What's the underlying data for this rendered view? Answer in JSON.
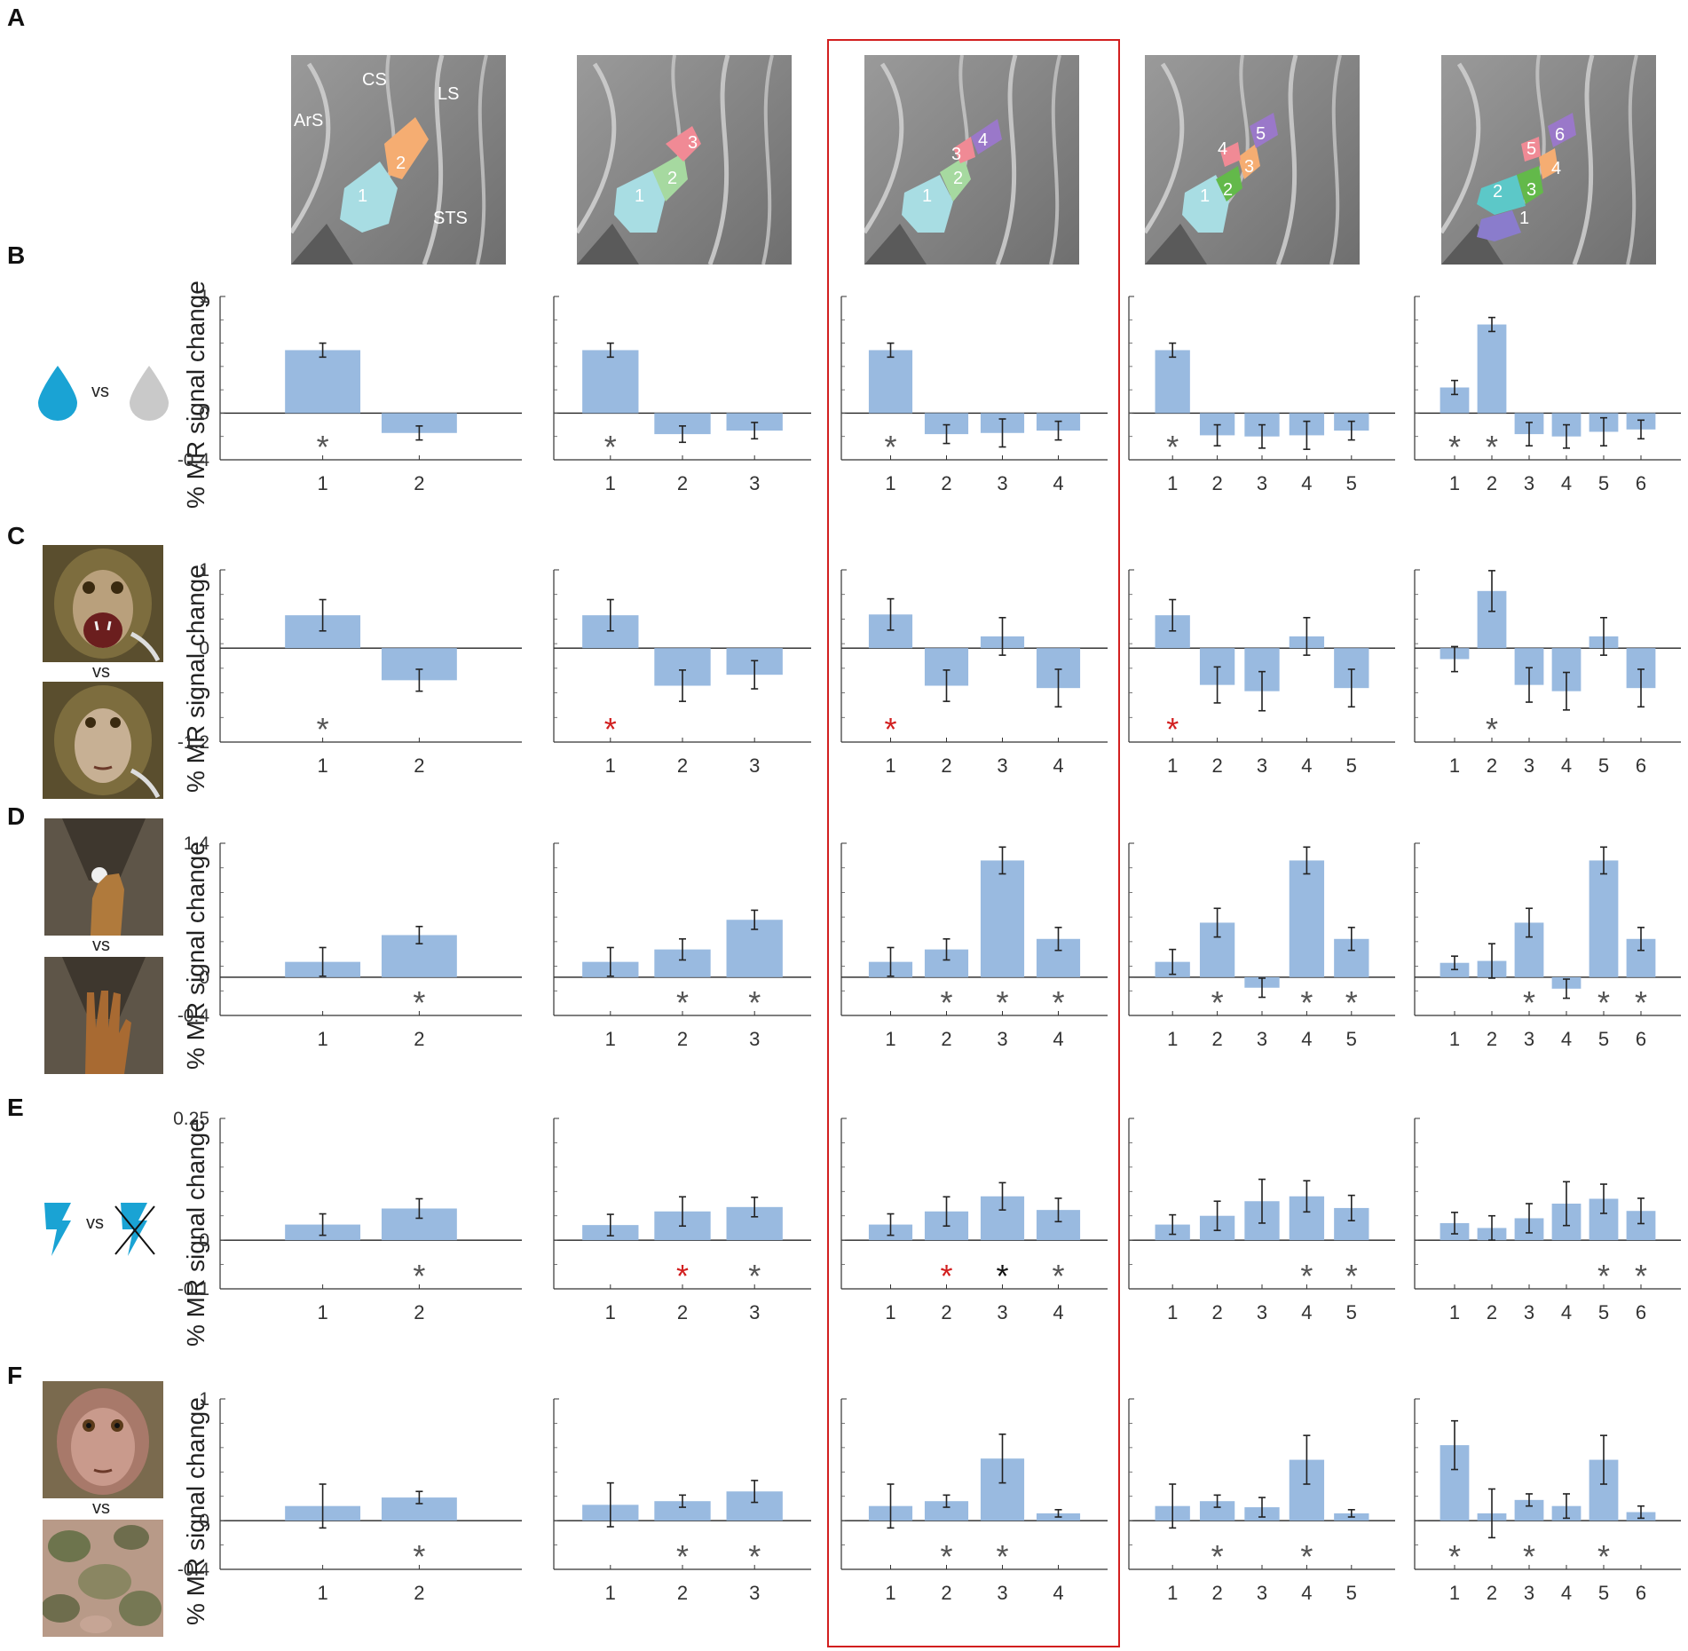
{
  "figure": {
    "panel_labels": [
      "A",
      "B",
      "C",
      "D",
      "E",
      "F"
    ],
    "ylabel": "% MR signal change",
    "vs_label": "vs",
    "highlight_color": "#d21f1f",
    "bar_color": "#99bae0",
    "star_colors": {
      "gray": "#555555",
      "red": "#d21f1f",
      "black": "#111111"
    }
  },
  "brain_maps": [
    {
      "labels": [
        "1",
        "2"
      ],
      "sulci": [
        "CS",
        "LS",
        "ArS",
        "STS"
      ]
    },
    {
      "labels": [
        "1",
        "2",
        "3"
      ],
      "sulci": []
    },
    {
      "labels": [
        "1",
        "2",
        "3",
        "4"
      ],
      "sulci": []
    },
    {
      "labels": [
        "1",
        "2",
        "3",
        "4",
        "5"
      ],
      "sulci": []
    },
    {
      "labels": [
        "1",
        "2",
        "3",
        "4",
        "5",
        "6"
      ],
      "sulci": []
    }
  ],
  "chart_data": [
    {
      "row": "B",
      "type": "bar",
      "ylim": [
        -0.4,
        1
      ],
      "yticks": [
        "1",
        "0",
        "-0.4"
      ],
      "charts": [
        {
          "categories": [
            "1",
            "2"
          ],
          "values": [
            0.54,
            -0.17
          ],
          "errors": [
            0.06,
            0.06
          ],
          "stars": [
            "gray",
            ""
          ]
        },
        {
          "categories": [
            "1",
            "2",
            "3"
          ],
          "values": [
            0.54,
            -0.18,
            -0.15
          ],
          "errors": [
            0.06,
            0.07,
            0.07
          ],
          "stars": [
            "gray",
            "",
            ""
          ]
        },
        {
          "categories": [
            "1",
            "2",
            "3",
            "4"
          ],
          "values": [
            0.54,
            -0.18,
            -0.17,
            -0.15
          ],
          "errors": [
            0.06,
            0.08,
            0.12,
            0.08
          ],
          "stars": [
            "gray",
            "",
            "",
            ""
          ]
        },
        {
          "categories": [
            "1",
            "2",
            "3",
            "4",
            "5"
          ],
          "values": [
            0.54,
            -0.19,
            -0.2,
            -0.19,
            -0.15
          ],
          "errors": [
            0.06,
            0.09,
            0.1,
            0.12,
            0.08
          ],
          "stars": [
            "gray",
            "",
            "",
            "",
            ""
          ]
        },
        {
          "categories": [
            "1",
            "2",
            "3",
            "4",
            "5",
            "6"
          ],
          "values": [
            0.22,
            0.76,
            -0.18,
            -0.2,
            -0.16,
            -0.14
          ],
          "errors": [
            0.06,
            0.06,
            0.1,
            0.1,
            0.12,
            0.08
          ],
          "stars": [
            "gray",
            "gray",
            "",
            "",
            "",
            ""
          ]
        }
      ]
    },
    {
      "row": "C",
      "type": "bar",
      "ylim": [
        -1.2,
        1
      ],
      "yticks": [
        "1",
        "0",
        "-1.2"
      ],
      "charts": [
        {
          "categories": [
            "1",
            "2"
          ],
          "values": [
            0.42,
            -0.41
          ],
          "errors": [
            0.2,
            0.14
          ],
          "stars": [
            "gray",
            ""
          ]
        },
        {
          "categories": [
            "1",
            "2",
            "3"
          ],
          "values": [
            0.42,
            -0.48,
            -0.34
          ],
          "errors": [
            0.2,
            0.2,
            0.18
          ],
          "stars": [
            "red",
            "",
            ""
          ]
        },
        {
          "categories": [
            "1",
            "2",
            "3",
            "4"
          ],
          "values": [
            0.43,
            -0.48,
            0.15,
            -0.51
          ],
          "errors": [
            0.2,
            0.2,
            0.24,
            0.24
          ],
          "stars": [
            "red",
            "",
            "",
            ""
          ]
        },
        {
          "categories": [
            "1",
            "2",
            "3",
            "4",
            "5"
          ],
          "values": [
            0.42,
            -0.47,
            -0.55,
            0.15,
            -0.51
          ],
          "errors": [
            0.2,
            0.23,
            0.25,
            0.24,
            0.24
          ],
          "stars": [
            "red",
            "",
            "",
            "",
            ""
          ]
        },
        {
          "categories": [
            "1",
            "2",
            "3",
            "4",
            "5",
            "6"
          ],
          "values": [
            -0.14,
            0.73,
            -0.47,
            -0.55,
            0.15,
            -0.51
          ],
          "errors": [
            0.16,
            0.26,
            0.22,
            0.24,
            0.24,
            0.24
          ],
          "stars": [
            "",
            "gray",
            "",
            "",
            "",
            ""
          ]
        }
      ]
    },
    {
      "row": "D",
      "type": "bar",
      "ylim": [
        -0.4,
        1.4
      ],
      "yticks": [
        "1.4",
        "0",
        "-0.4"
      ],
      "charts": [
        {
          "categories": [
            "1",
            "2"
          ],
          "values": [
            0.16,
            0.44
          ],
          "errors": [
            0.15,
            0.09
          ],
          "stars": [
            "",
            "gray"
          ]
        },
        {
          "categories": [
            "1",
            "2",
            "3"
          ],
          "values": [
            0.16,
            0.29,
            0.6
          ],
          "errors": [
            0.15,
            0.11,
            0.1
          ],
          "stars": [
            "",
            "gray",
            "gray"
          ]
        },
        {
          "categories": [
            "1",
            "2",
            "3",
            "4"
          ],
          "values": [
            0.16,
            0.29,
            1.22,
            0.4
          ],
          "errors": [
            0.15,
            0.11,
            0.14,
            0.12
          ],
          "stars": [
            "",
            "gray",
            "gray",
            "gray"
          ]
        },
        {
          "categories": [
            "1",
            "2",
            "3",
            "4",
            "5"
          ],
          "values": [
            0.16,
            0.57,
            -0.11,
            1.22,
            0.4
          ],
          "errors": [
            0.13,
            0.15,
            0.1,
            0.14,
            0.12
          ],
          "stars": [
            "",
            "gray",
            "",
            "gray",
            "gray"
          ]
        },
        {
          "categories": [
            "1",
            "2",
            "3",
            "4",
            "5",
            "6"
          ],
          "values": [
            0.15,
            0.17,
            0.57,
            -0.12,
            1.22,
            0.4
          ],
          "errors": [
            0.07,
            0.18,
            0.15,
            0.1,
            0.14,
            0.12
          ],
          "stars": [
            "",
            "",
            "gray",
            "",
            "gray",
            "gray"
          ]
        }
      ]
    },
    {
      "row": "E",
      "type": "bar",
      "ylim": [
        -0.1,
        0.25
      ],
      "yticks": [
        "0.25",
        "0",
        "-0.1"
      ],
      "charts": [
        {
          "categories": [
            "1",
            "2"
          ],
          "values": [
            0.032,
            0.065
          ],
          "errors": [
            0.022,
            0.02
          ],
          "stars": [
            "",
            "gray"
          ]
        },
        {
          "categories": [
            "1",
            "2",
            "3"
          ],
          "values": [
            0.031,
            0.059,
            0.068
          ],
          "errors": [
            0.022,
            0.03,
            0.02
          ],
          "stars": [
            "",
            "red",
            "gray"
          ]
        },
        {
          "categories": [
            "1",
            "2",
            "3",
            "4"
          ],
          "values": [
            0.032,
            0.059,
            0.09,
            0.062
          ],
          "errors": [
            0.022,
            0.03,
            0.028,
            0.024
          ],
          "stars": [
            "",
            "red",
            "black",
            "gray"
          ]
        },
        {
          "categories": [
            "1",
            "2",
            "3",
            "4",
            "5"
          ],
          "values": [
            0.032,
            0.05,
            0.08,
            0.09,
            0.066
          ],
          "errors": [
            0.02,
            0.03,
            0.045,
            0.032,
            0.026
          ],
          "stars": [
            "",
            "",
            "",
            "gray",
            "gray"
          ]
        },
        {
          "categories": [
            "1",
            "2",
            "3",
            "4",
            "5",
            "6"
          ],
          "values": [
            0.035,
            0.025,
            0.045,
            0.075,
            0.085,
            0.06
          ],
          "errors": [
            0.022,
            0.025,
            0.03,
            0.045,
            0.03,
            0.026
          ],
          "stars": [
            "",
            "",
            "",
            "",
            "gray",
            "gray"
          ]
        }
      ]
    },
    {
      "row": "F",
      "type": "bar",
      "ylim": [
        -0.4,
        1
      ],
      "yticks": [
        "1",
        "0",
        "-0.4"
      ],
      "charts": [
        {
          "categories": [
            "1",
            "2"
          ],
          "values": [
            0.12,
            0.19
          ],
          "errors": [
            0.18,
            0.05
          ],
          "stars": [
            "",
            "gray"
          ]
        },
        {
          "categories": [
            "1",
            "2",
            "3"
          ],
          "values": [
            0.13,
            0.16,
            0.24
          ],
          "errors": [
            0.18,
            0.05,
            0.09
          ],
          "stars": [
            "",
            "gray",
            "gray"
          ]
        },
        {
          "categories": [
            "1",
            "2",
            "3",
            "4"
          ],
          "values": [
            0.12,
            0.16,
            0.51,
            0.06
          ],
          "errors": [
            0.18,
            0.05,
            0.2,
            0.03
          ],
          "stars": [
            "",
            "gray",
            "gray",
            ""
          ]
        },
        {
          "categories": [
            "1",
            "2",
            "3",
            "4",
            "5"
          ],
          "values": [
            0.12,
            0.16,
            0.11,
            0.5,
            0.06
          ],
          "errors": [
            0.18,
            0.05,
            0.08,
            0.2,
            0.03
          ],
          "stars": [
            "",
            "gray",
            "",
            "gray",
            ""
          ]
        },
        {
          "categories": [
            "1",
            "2",
            "3",
            "4",
            "5",
            "6"
          ],
          "values": [
            0.62,
            0.06,
            0.17,
            0.12,
            0.5,
            0.07
          ],
          "errors": [
            0.2,
            0.2,
            0.05,
            0.1,
            0.2,
            0.05
          ],
          "stars": [
            "gray",
            "",
            "gray",
            "",
            "gray",
            ""
          ]
        }
      ]
    }
  ]
}
